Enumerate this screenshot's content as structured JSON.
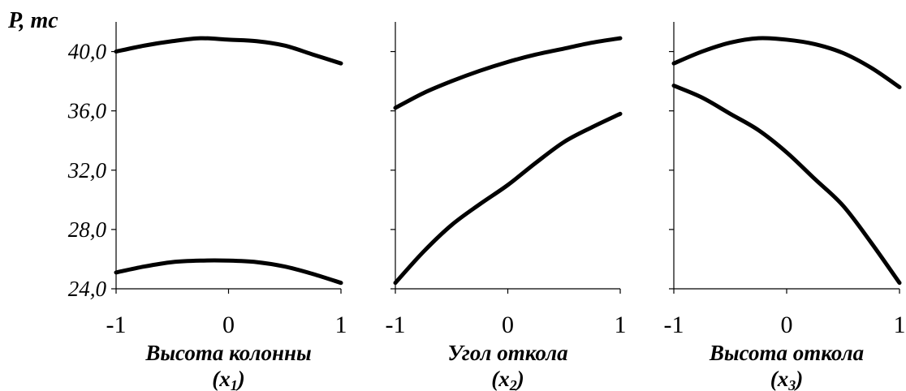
{
  "chart_data": [
    {
      "type": "line",
      "ylabel": "P, тс",
      "xlabel_main": "Высота колонны",
      "xlabel_var": "x",
      "xlabel_sub": "1",
      "x_ticks": [
        "-1",
        "0",
        "1"
      ],
      "y_ticks": [
        "24,0",
        "28,0",
        "32,0",
        "36,0",
        "40,0"
      ],
      "xlim": [
        -1,
        1
      ],
      "ylim": [
        24,
        42
      ],
      "series": [
        {
          "x": [
            -1,
            -0.75,
            -0.5,
            -0.25,
            0,
            0.25,
            0.5,
            0.75,
            1
          ],
          "y": [
            40.0,
            40.4,
            40.7,
            40.9,
            40.8,
            40.7,
            40.4,
            39.8,
            39.2
          ]
        },
        {
          "x": [
            -1,
            -0.75,
            -0.5,
            -0.25,
            0,
            0.25,
            0.5,
            0.75,
            1
          ],
          "y": [
            25.1,
            25.5,
            25.8,
            25.9,
            25.9,
            25.8,
            25.5,
            25.0,
            24.4
          ]
        }
      ]
    },
    {
      "type": "line",
      "xlabel_main": "Угол откола",
      "xlabel_var": "x",
      "xlabel_sub": "2",
      "x_ticks": [
        "-1",
        "0",
        "1"
      ],
      "xlim": [
        -1,
        1
      ],
      "ylim": [
        24,
        42
      ],
      "series": [
        {
          "x": [
            -1,
            -0.75,
            -0.5,
            -0.25,
            0,
            0.25,
            0.5,
            0.75,
            1
          ],
          "y": [
            36.2,
            37.2,
            38.0,
            38.7,
            39.3,
            39.8,
            40.2,
            40.6,
            40.9
          ]
        },
        {
          "x": [
            -1,
            -0.75,
            -0.5,
            -0.25,
            0,
            0.25,
            0.5,
            0.75,
            1
          ],
          "y": [
            24.4,
            26.5,
            28.3,
            29.7,
            31.0,
            32.5,
            33.9,
            34.9,
            35.8
          ]
        }
      ]
    },
    {
      "type": "line",
      "xlabel_main": "Высота откола",
      "xlabel_var": "x",
      "xlabel_sub": "3",
      "x_ticks": [
        "-1",
        "0",
        "1"
      ],
      "xlim": [
        -1,
        1
      ],
      "ylim": [
        24,
        42
      ],
      "series": [
        {
          "x": [
            -1,
            -0.75,
            -0.5,
            -0.25,
            0,
            0.25,
            0.5,
            0.75,
            1
          ],
          "y": [
            39.2,
            40.0,
            40.6,
            40.9,
            40.8,
            40.5,
            39.9,
            38.9,
            37.6
          ]
        },
        {
          "x": [
            -1,
            -0.75,
            -0.5,
            -0.25,
            0,
            0.25,
            0.5,
            0.75,
            1
          ],
          "y": [
            37.7,
            36.9,
            35.8,
            34.7,
            33.2,
            31.4,
            29.6,
            27.1,
            24.4
          ]
        }
      ]
    }
  ]
}
